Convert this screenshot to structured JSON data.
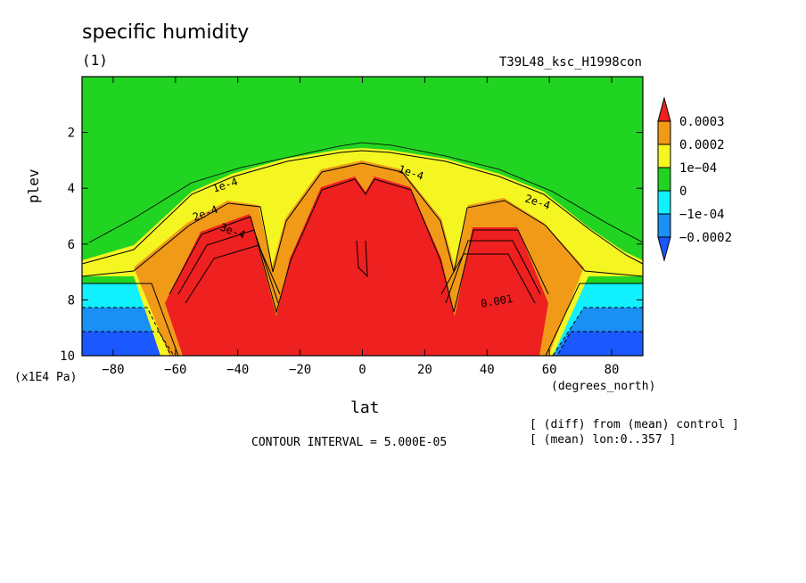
{
  "title": "specific humidity",
  "panel_label": "(1)",
  "experiment": "T39L48_ksc_H1998con",
  "contour_interval": "CONTOUR INTERVAL = 5.000E-05",
  "notes": [
    "[ (diff) from (mean) control ]",
    "[ (mean) lon:0..357 ]"
  ],
  "chart_data": {
    "type": "heatmap",
    "title": "specific humidity",
    "xlabel": "lat",
    "ylabel": "plev",
    "x_unit": "(degrees_north)",
    "y_unit": "(x1E4 Pa)",
    "xlim": [
      -90,
      90
    ],
    "ylim": [
      0,
      10
    ],
    "y_inverted": true,
    "x_ticks": [
      -80,
      -60,
      -40,
      -20,
      0,
      20,
      40,
      60,
      80
    ],
    "y_ticks": [
      2,
      4,
      6,
      8,
      10
    ],
    "contour_labels": [
      "1e-4",
      "2e-4",
      "3e-4",
      "1e-4",
      "2e-4",
      "0.001"
    ],
    "colorbar": {
      "levels": [
        "0.0003",
        "0.0002",
        "1e-04",
        "0",
        "-1e-04",
        "-0.0002"
      ],
      "colors": [
        "#ee2020",
        "#f19a18",
        "#f5f522",
        "#22d422",
        "#11f0ff",
        "#1a8ff4",
        "#1b58ff"
      ]
    }
  }
}
